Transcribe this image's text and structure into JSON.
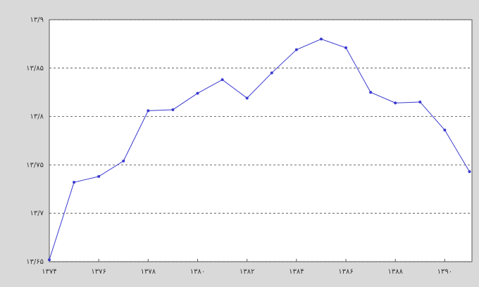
{
  "chart_data": {
    "type": "line",
    "x": [
      1374,
      1375,
      1376,
      1377,
      1378,
      1379,
      1380,
      1381,
      1382,
      1383,
      1384,
      1385,
      1386,
      1387,
      1388,
      1389,
      1390,
      1391
    ],
    "values": [
      13.652,
      13.732,
      13.738,
      13.754,
      13.806,
      13.807,
      13.824,
      13.838,
      13.819,
      13.845,
      13.869,
      13.88,
      13.871,
      13.825,
      13.814,
      13.815,
      13.786,
      13.743
    ],
    "color": "#3a3ad0",
    "xlim": [
      1374,
      1391.1
    ],
    "ylim": [
      13.65,
      13.9
    ],
    "xticks": [
      {
        "value": 1374,
        "label": "۱۳۷۴"
      },
      {
        "value": 1376,
        "label": "۱۳۷۶"
      },
      {
        "value": 1378,
        "label": "۱۳۷۸"
      },
      {
        "value": 1380,
        "label": "۱۳۸۰"
      },
      {
        "value": 1382,
        "label": "۱۳۸۲"
      },
      {
        "value": 1384,
        "label": "۱۳۸۴"
      },
      {
        "value": 1386,
        "label": "۱۳۸۶"
      },
      {
        "value": 1388,
        "label": "۱۳۸۸"
      },
      {
        "value": 1390,
        "label": "۱۳۹۰"
      }
    ],
    "yticks": [
      {
        "value": 13.65,
        "label": "۱۳/۶۵"
      },
      {
        "value": 13.7,
        "label": "۱۳/۷"
      },
      {
        "value": 13.75,
        "label": "۱۳/۷۵"
      },
      {
        "value": 13.8,
        "label": "۱۳/۸"
      },
      {
        "value": 13.85,
        "label": "۱۳/۸۵"
      },
      {
        "value": 13.9,
        "label": "۱۳/۹"
      }
    ],
    "grid": true
  }
}
